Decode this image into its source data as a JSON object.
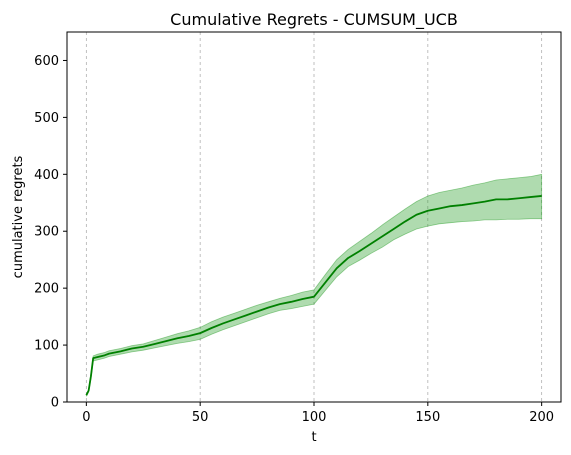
{
  "chart_data": {
    "type": "line",
    "title": "Cumulative Regrets - CUMSUM_UCB",
    "xlabel": "t",
    "ylabel": "cumulative regrets",
    "xlim": [
      -8.5,
      208.5
    ],
    "ylim": [
      0,
      650
    ],
    "xticks": [
      0,
      50,
      100,
      150,
      200
    ],
    "xtick_labels": [
      "0",
      "50",
      "100",
      "150",
      "200"
    ],
    "yticks": [
      0,
      100,
      200,
      300,
      400,
      500,
      600
    ],
    "ytick_labels": [
      "0",
      "100",
      "200",
      "300",
      "400",
      "500",
      "600"
    ],
    "grid": "vertical dashed lines at x ticks",
    "legend": "none",
    "colors": {
      "line": "#008000",
      "band": "#2ca02c"
    },
    "series": [
      {
        "x": [
          0,
          1,
          2,
          3,
          5,
          8,
          10,
          15,
          20,
          25,
          30,
          35,
          40,
          45,
          50,
          55,
          60,
          65,
          70,
          75,
          80,
          85,
          90,
          95,
          100,
          105,
          110,
          115,
          120,
          125,
          130,
          135,
          140,
          145,
          150,
          155,
          160,
          165,
          170,
          175,
          180,
          185,
          190,
          195,
          200
        ],
        "mean": [
          12,
          20,
          45,
          77,
          79,
          82,
          85,
          89,
          94,
          97,
          102,
          107,
          112,
          116,
          121,
          130,
          138,
          145,
          152,
          159,
          166,
          172,
          176,
          181,
          185,
          210,
          235,
          253,
          265,
          278,
          291,
          304,
          317,
          329,
          336,
          340,
          344,
          346,
          349,
          352,
          356,
          356,
          358,
          360,
          362
        ],
        "lower": [
          10,
          18,
          41,
          72,
          74,
          77,
          80,
          84,
          88,
          91,
          95,
          99,
          103,
          106,
          110,
          119,
          127,
          134,
          141,
          148,
          155,
          161,
          164,
          168,
          172,
          196,
          220,
          238,
          249,
          261,
          272,
          285,
          295,
          304,
          309,
          313,
          315,
          317,
          318,
          320,
          320,
          321,
          321,
          322,
          322
        ],
        "upper": [
          14,
          22,
          49,
          81,
          84,
          87,
          90,
          94,
          99,
          102,
          108,
          114,
          120,
          125,
          131,
          141,
          149,
          156,
          163,
          170,
          176,
          182,
          187,
          193,
          197,
          224,
          250,
          268,
          282,
          296,
          311,
          325,
          339,
          352,
          362,
          368,
          372,
          376,
          381,
          385,
          390,
          392,
          394,
          396,
          400
        ]
      }
    ]
  }
}
